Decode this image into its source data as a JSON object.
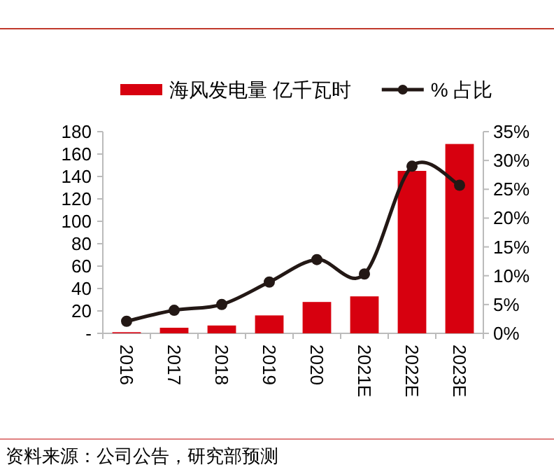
{
  "chart_data": {
    "type": "bar",
    "categories": [
      "2016",
      "2017",
      "2018",
      "2019",
      "2020",
      "2021E",
      "2022E",
      "2023E"
    ],
    "series": [
      {
        "name": "海风发电量 亿千瓦时",
        "color": "#d7000f",
        "values": [
          1,
          5,
          7,
          16,
          28,
          33,
          145,
          169
        ]
      },
      {
        "name": "% 占比",
        "type": "line",
        "axis": "y2",
        "color": "#231815",
        "marker": "circle",
        "values": [
          2.1,
          4.0,
          5.0,
          8.9,
          12.8,
          10.3,
          29.0,
          25.7
        ]
      }
    ],
    "ylim": [
      0,
      180
    ],
    "yticks": [
      {
        "value": 0,
        "label": "-"
      },
      20,
      40,
      60,
      80,
      100,
      120,
      140,
      160,
      180
    ],
    "y2lim": [
      0,
      35
    ],
    "y2ticks": [
      {
        "value": 0,
        "label": "0%"
      },
      {
        "value": 5,
        "label": "5%"
      },
      {
        "value": 10,
        "label": "10%"
      },
      {
        "value": 15,
        "label": "15%"
      },
      {
        "value": 20,
        "label": "20%"
      },
      {
        "value": 25,
        "label": "25%"
      },
      {
        "value": 30,
        "label": "30%"
      },
      {
        "value": 35,
        "label": "35%"
      }
    ],
    "legend": "top",
    "annotations": [
      "资料来源：公司公告，研究部预测"
    ]
  }
}
